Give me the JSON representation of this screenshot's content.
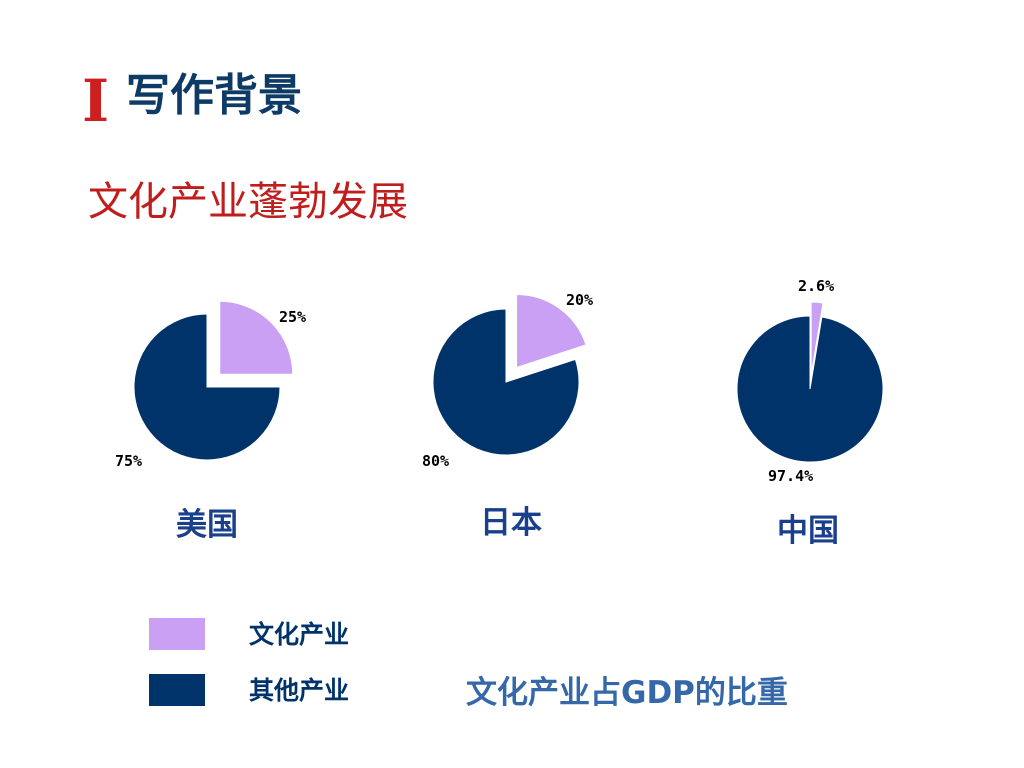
{
  "slide": {
    "roman": "I",
    "title": "写作背景",
    "subtitle": "文化产业蓬勃发展",
    "caption": "文化产业占GDP的比重"
  },
  "colors": {
    "roman": "#cc1f1f",
    "title": "#0d3b66",
    "subtitle": "#c01d1d",
    "culture": "#c9a0f4",
    "other": "#00336a",
    "country_label": "#1a3f8c",
    "caption": "#3568a8"
  },
  "legend": [
    {
      "name": "文化产业",
      "color_key": "culture"
    },
    {
      "name": "其他产业",
      "color_key": "other"
    }
  ],
  "chart_data": [
    {
      "type": "pie",
      "country": "美国",
      "slices": [
        {
          "name": "文化产业",
          "value": 25,
          "label": "25%",
          "exploded": true
        },
        {
          "name": "其他产业",
          "value": 75,
          "label": "75%",
          "exploded": false
        }
      ]
    },
    {
      "type": "pie",
      "country": "日本",
      "slices": [
        {
          "name": "文化产业",
          "value": 20,
          "label": "20%",
          "exploded": true
        },
        {
          "name": "其他产业",
          "value": 80,
          "label": "80%",
          "exploded": false
        }
      ]
    },
    {
      "type": "pie",
      "country": "中国",
      "slices": [
        {
          "name": "文化产业",
          "value": 2.6,
          "label": "2.6%",
          "exploded": true
        },
        {
          "name": "其他产业",
          "value": 97.4,
          "label": "97.4%",
          "exploded": false
        }
      ]
    }
  ]
}
